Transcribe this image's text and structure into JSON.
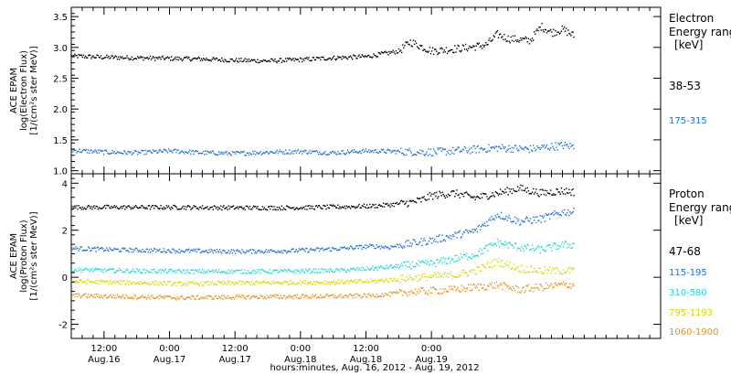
{
  "chart_data": [
    {
      "type": "scatter",
      "panel": "electron",
      "ylabel_lines": [
        "ACE EPAM",
        "log(Electron Flux)",
        "[1/(cm²s ster MeV)]"
      ],
      "ylim": [
        0.95,
        3.65
      ],
      "yticks": [
        1.0,
        1.5,
        2.0,
        2.5,
        3.0,
        3.5
      ],
      "ytick_labels": [
        "1.0",
        "1.5",
        "2.0",
        "2.5",
        "3.0",
        "3.5"
      ],
      "legend_title_lines": [
        "Electron",
        "Energy ranges",
        "[keV]"
      ],
      "series": [
        {
          "name": "38-53",
          "color": "#000000",
          "x": [
            0,
            6,
            12,
            18,
            24,
            30,
            36,
            42,
            48,
            54,
            60,
            62,
            66,
            72,
            76,
            78,
            80,
            84,
            86,
            88,
            90,
            92
          ],
          "y": [
            2.87,
            2.85,
            2.84,
            2.83,
            2.82,
            2.8,
            2.79,
            2.81,
            2.84,
            2.86,
            2.95,
            3.1,
            2.95,
            3.0,
            3.05,
            3.22,
            3.15,
            3.12,
            3.35,
            3.25,
            3.3,
            3.2
          ]
        },
        {
          "name": "175-315",
          "color": "#1e6fd0",
          "x": [
            0,
            6,
            12,
            18,
            24,
            30,
            36,
            42,
            48,
            54,
            60,
            66,
            72,
            78,
            84,
            90,
            92
          ],
          "y": [
            1.34,
            1.31,
            1.3,
            1.33,
            1.3,
            1.29,
            1.31,
            1.32,
            1.3,
            1.33,
            1.32,
            1.31,
            1.34,
            1.38,
            1.36,
            1.42,
            1.4
          ]
        }
      ]
    },
    {
      "type": "scatter",
      "panel": "proton",
      "ylabel_lines": [
        "ACE EPAM",
        "log(Proton Flux)",
        "[1/(cm²s ster MeV)]"
      ],
      "ylim": [
        -2.6,
        4.4
      ],
      "yticks": [
        -2,
        0,
        2,
        4
      ],
      "ytick_labels": [
        "-2",
        "0",
        "2",
        "4"
      ],
      "legend_title_lines": [
        "Proton",
        "Energy ranges",
        "[keV]"
      ],
      "xlabel": "hours:minutes, Aug. 16, 2012 - Aug. 19, 2012",
      "xlim": [
        0,
        108
      ],
      "xticks": [
        6,
        18,
        30,
        42,
        54,
        66
      ],
      "xtick_labels_top": [
        "12:00",
        "0:00",
        "12:00",
        "0:00",
        "12:00",
        "0:00"
      ],
      "xtick_labels_bottom": [
        "Aug.16",
        "Aug.17",
        "Aug.17",
        "Aug.18",
        "Aug.18",
        "Aug.19"
      ],
      "series": [
        {
          "name": "47-68",
          "color": "#000000",
          "x": [
            0,
            10,
            20,
            30,
            40,
            50,
            55,
            58,
            62,
            64,
            66,
            70,
            74,
            78,
            82,
            86,
            90,
            92
          ],
          "y": [
            3.0,
            3.0,
            3.0,
            2.98,
            2.98,
            3.02,
            3.05,
            3.1,
            3.2,
            3.3,
            3.5,
            3.6,
            3.4,
            3.6,
            3.8,
            3.6,
            3.7,
            3.65
          ]
        },
        {
          "name": "115-195",
          "color": "#1e6fd0",
          "x": [
            0,
            10,
            20,
            30,
            40,
            50,
            55,
            58,
            62,
            66,
            70,
            74,
            78,
            82,
            86,
            90,
            92
          ],
          "y": [
            1.25,
            1.18,
            1.15,
            1.12,
            1.15,
            1.25,
            1.35,
            1.3,
            1.45,
            1.6,
            1.8,
            2.0,
            2.7,
            2.4,
            2.5,
            2.8,
            2.8
          ]
        },
        {
          "name": "310-580",
          "color": "#22d4d4",
          "x": [
            0,
            10,
            20,
            30,
            40,
            50,
            55,
            58,
            62,
            66,
            70,
            74,
            78,
            82,
            86,
            90,
            92
          ],
          "y": [
            0.35,
            0.3,
            0.28,
            0.27,
            0.28,
            0.32,
            0.4,
            0.45,
            0.55,
            0.6,
            0.8,
            1.0,
            1.5,
            1.3,
            1.2,
            1.4,
            1.4
          ]
        },
        {
          "name": "795-1193",
          "color": "#d7d700",
          "x": [
            0,
            10,
            20,
            30,
            40,
            50,
            55,
            58,
            62,
            66,
            70,
            74,
            78,
            82,
            86,
            90,
            92
          ],
          "y": [
            -0.15,
            -0.2,
            -0.25,
            -0.22,
            -0.2,
            -0.18,
            -0.15,
            -0.1,
            0.0,
            0.05,
            0.1,
            0.3,
            0.7,
            0.4,
            0.3,
            0.3,
            0.3
          ]
        },
        {
          "name": "1060-1900",
          "color": "#e8901a",
          "x": [
            0,
            10,
            20,
            30,
            40,
            50,
            55,
            58,
            62,
            66,
            70,
            74,
            78,
            82,
            86,
            90,
            92
          ],
          "y": [
            -0.75,
            -0.8,
            -0.85,
            -0.82,
            -0.8,
            -0.78,
            -0.75,
            -0.7,
            -0.6,
            -0.55,
            -0.5,
            -0.4,
            -0.3,
            -0.5,
            -0.4,
            -0.3,
            -0.3
          ]
        }
      ]
    }
  ]
}
